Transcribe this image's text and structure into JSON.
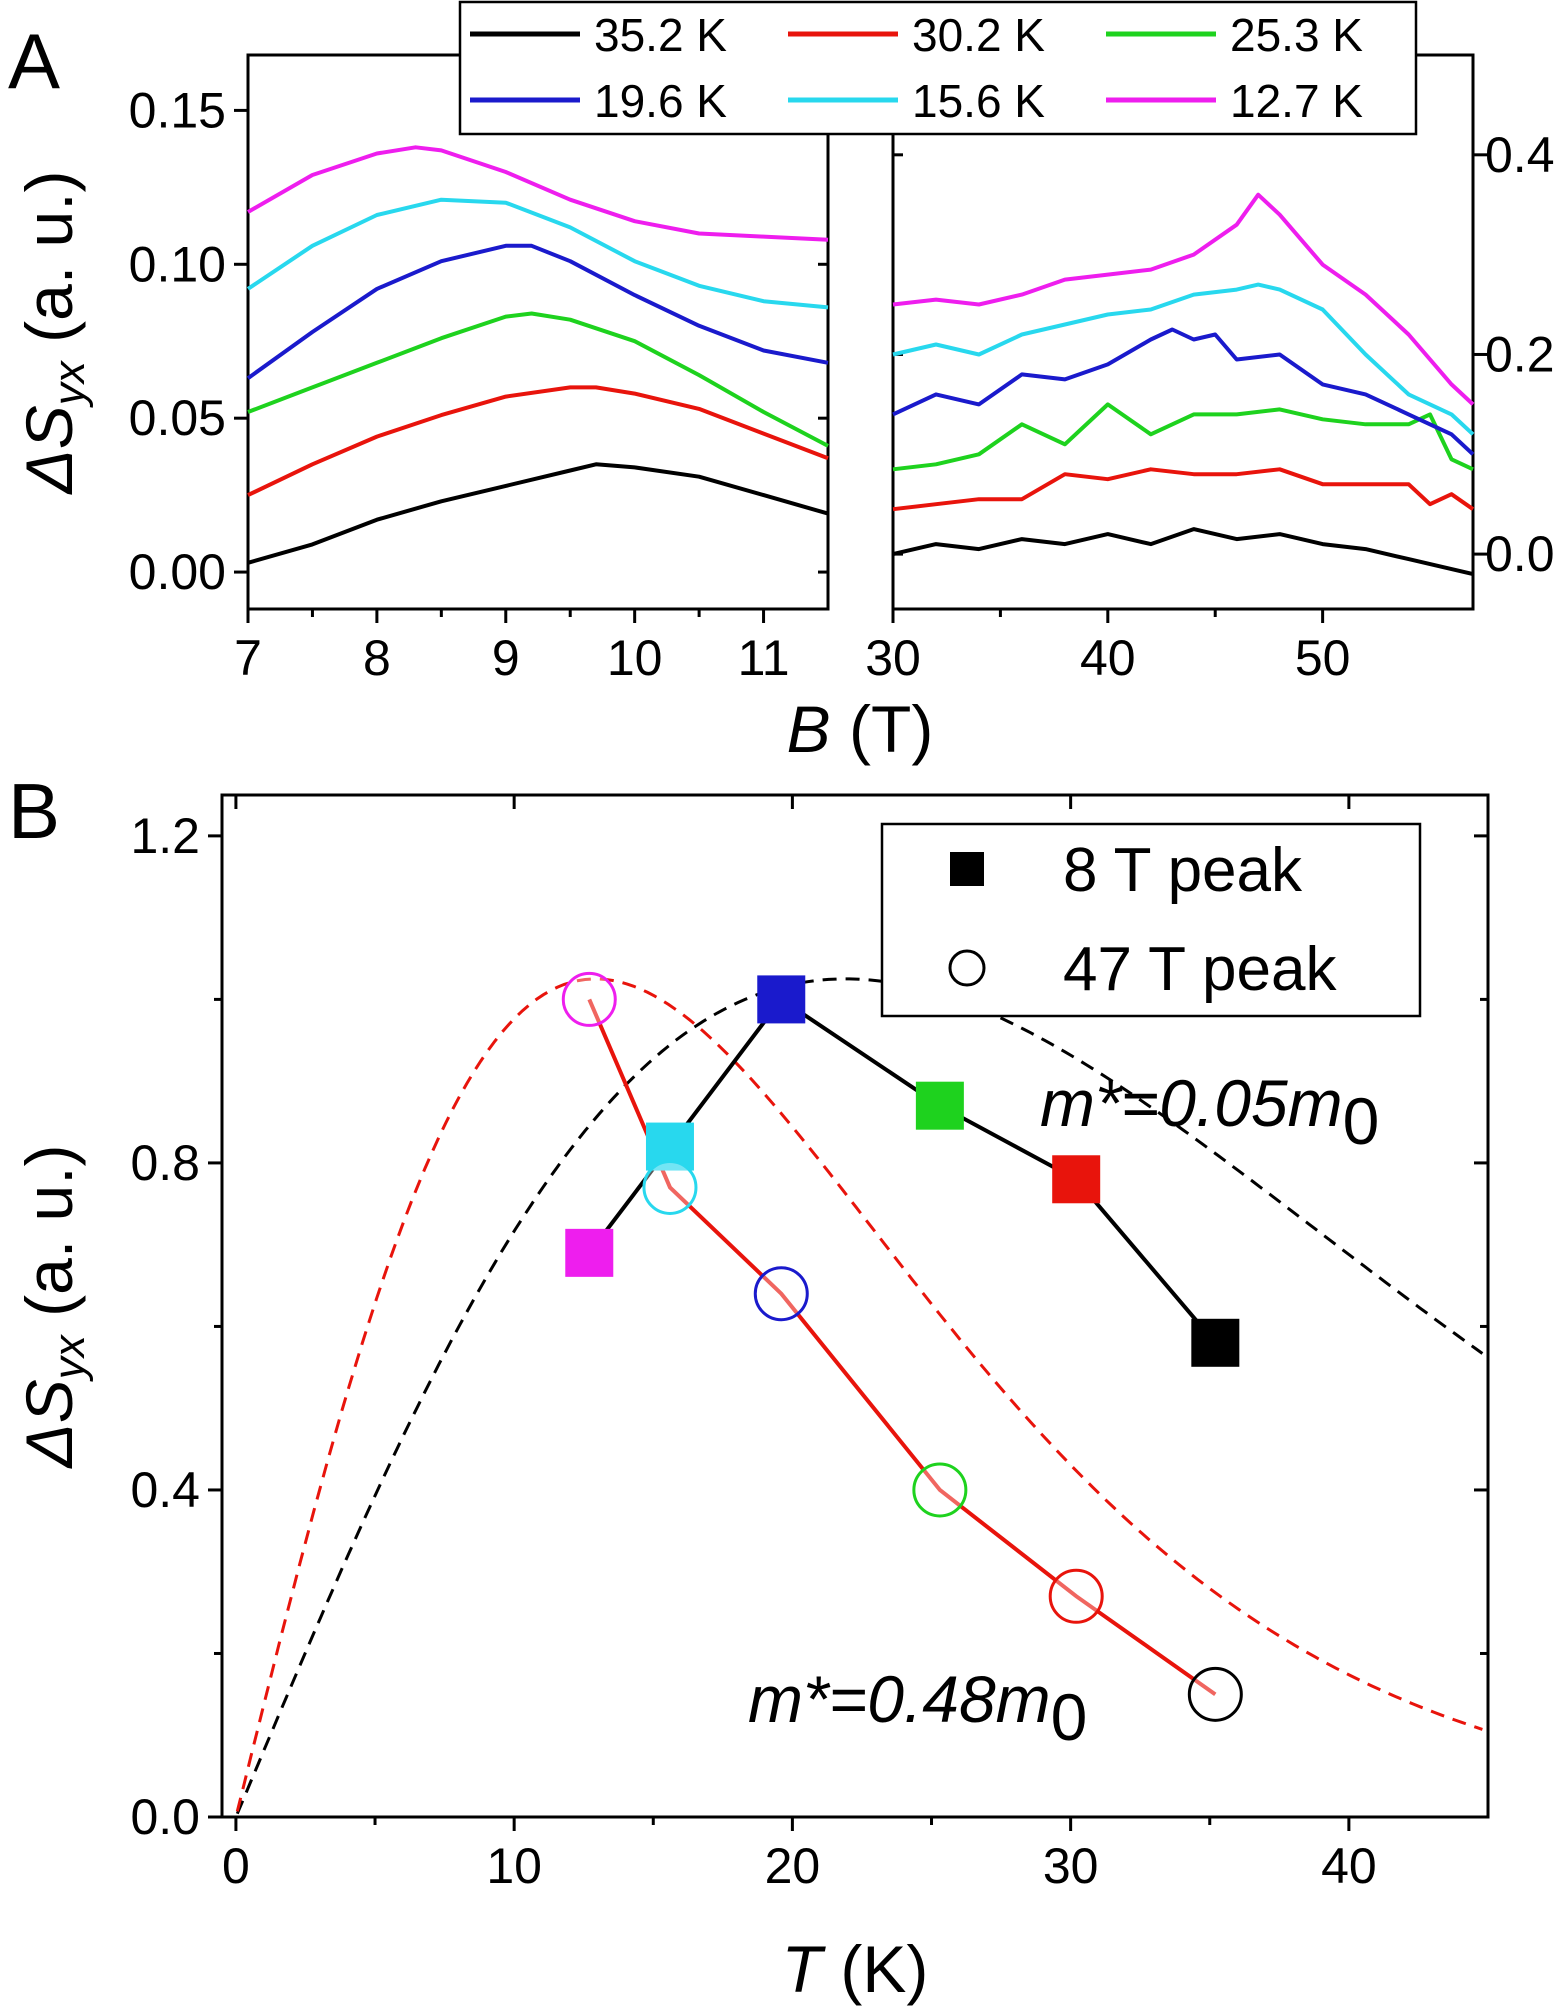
{
  "panels": {
    "A": {
      "letter": "A"
    },
    "B": {
      "letter": "B"
    }
  },
  "chart_data": [
    {
      "panel": "A",
      "type": "line",
      "ylabel": "ΔSyx (a. u.)",
      "ylabel_main": "ΔS",
      "ylabel_sub": "yx",
      "ylabel_unit": " (a. u.)",
      "xlabel": "B (T)",
      "xlabel_main": "B",
      "xlabel_unit": " (T)",
      "broken_x_axis": true,
      "left_axis": {
        "xlim": [
          7,
          11.5
        ],
        "ylim": [
          -0.012,
          0.168
        ],
        "xticks": [
          7,
          8,
          9,
          10,
          11
        ],
        "yticks": [
          0.0,
          0.05,
          0.1,
          0.15
        ],
        "yticklabels": [
          "0.00",
          "0.05",
          "0.10",
          "0.15"
        ]
      },
      "right_axis": {
        "xlim": [
          30,
          57
        ],
        "ylim": [
          -0.055,
          0.5
        ],
        "xticks": [
          30,
          40,
          50
        ],
        "yticks": [
          0.0,
          0.2,
          0.4
        ],
        "yticklabels": [
          "0.0",
          "0.2",
          "0.4"
        ]
      },
      "legend": {
        "placement": "top-center",
        "entries": [
          {
            "label": "35.2 K",
            "color": "#000000"
          },
          {
            "label": "30.2 K",
            "color": "#e8140c"
          },
          {
            "label": "25.3 K",
            "color": "#1ed21e"
          },
          {
            "label": "19.6 K",
            "color": "#1a1acc"
          },
          {
            "label": "15.6 K",
            "color": "#28d8ee"
          },
          {
            "label": "12.7 K",
            "color": "#ee1eee"
          }
        ]
      },
      "series": [
        {
          "name": "35.2 K",
          "color": "#000000",
          "low_field": {
            "x": [
              7,
              7.5,
              8,
              8.5,
              9,
              9.5,
              9.7,
              10,
              10.5,
              11,
              11.5
            ],
            "y": [
              0.003,
              0.009,
              0.017,
              0.023,
              0.028,
              0.033,
              0.035,
              0.034,
              0.031,
              0.025,
              0.019
            ]
          },
          "high_field": {
            "x": [
              30,
              32,
              34,
              36,
              38,
              40,
              42,
              44,
              46,
              48,
              50,
              52,
              54,
              56,
              57
            ],
            "y": [
              0.0,
              0.01,
              0.005,
              0.015,
              0.01,
              0.02,
              0.01,
              0.025,
              0.015,
              0.02,
              0.01,
              0.005,
              -0.005,
              -0.015,
              -0.02
            ]
          }
        },
        {
          "name": "30.2 K",
          "color": "#e8140c",
          "low_field": {
            "x": [
              7,
              7.5,
              8,
              8.5,
              9,
              9.5,
              9.7,
              10,
              10.5,
              11,
              11.5
            ],
            "y": [
              0.025,
              0.035,
              0.044,
              0.051,
              0.057,
              0.06,
              0.06,
              0.058,
              0.053,
              0.045,
              0.037
            ]
          },
          "high_field": {
            "x": [
              30,
              32,
              34,
              36,
              38,
              40,
              42,
              44,
              46,
              48,
              50,
              52,
              54,
              55,
              56,
              57
            ],
            "y": [
              0.045,
              0.05,
              0.055,
              0.055,
              0.08,
              0.075,
              0.085,
              0.08,
              0.08,
              0.085,
              0.07,
              0.07,
              0.07,
              0.05,
              0.06,
              0.045
            ]
          }
        },
        {
          "name": "25.3 K",
          "color": "#1ed21e",
          "low_field": {
            "x": [
              7,
              7.5,
              8,
              8.5,
              9,
              9.2,
              9.5,
              10,
              10.5,
              11,
              11.5
            ],
            "y": [
              0.052,
              0.06,
              0.068,
              0.076,
              0.083,
              0.084,
              0.082,
              0.075,
              0.064,
              0.052,
              0.041
            ]
          },
          "high_field": {
            "x": [
              30,
              32,
              34,
              36,
              38,
              40,
              42,
              44,
              46,
              48,
              50,
              52,
              54,
              55,
              56,
              57
            ],
            "y": [
              0.085,
              0.09,
              0.1,
              0.13,
              0.11,
              0.15,
              0.12,
              0.14,
              0.14,
              0.145,
              0.135,
              0.13,
              0.13,
              0.14,
              0.095,
              0.085
            ]
          }
        },
        {
          "name": "19.6 K",
          "color": "#1a1acc",
          "low_field": {
            "x": [
              7,
              7.5,
              8,
              8.5,
              9,
              9.2,
              9.5,
              10,
              10.5,
              11,
              11.5
            ],
            "y": [
              0.063,
              0.078,
              0.092,
              0.101,
              0.106,
              0.106,
              0.101,
              0.09,
              0.08,
              0.072,
              0.068
            ]
          },
          "high_field": {
            "x": [
              30,
              32,
              34,
              36,
              38,
              40,
              42,
              43,
              44,
              45,
              46,
              48,
              50,
              52,
              54,
              56,
              57
            ],
            "y": [
              0.14,
              0.16,
              0.15,
              0.18,
              0.175,
              0.19,
              0.215,
              0.225,
              0.215,
              0.22,
              0.195,
              0.2,
              0.17,
              0.16,
              0.14,
              0.12,
              0.1
            ]
          }
        },
        {
          "name": "15.6 K",
          "color": "#28d8ee",
          "low_field": {
            "x": [
              7,
              7.5,
              8,
              8.5,
              9,
              9.5,
              10,
              10.5,
              11,
              11.5
            ],
            "y": [
              0.092,
              0.106,
              0.116,
              0.121,
              0.12,
              0.112,
              0.101,
              0.093,
              0.088,
              0.086
            ]
          },
          "high_field": {
            "x": [
              30,
              32,
              34,
              36,
              38,
              40,
              42,
              44,
              46,
              47,
              48,
              50,
              52,
              54,
              56,
              57
            ],
            "y": [
              0.2,
              0.21,
              0.2,
              0.22,
              0.23,
              0.24,
              0.245,
              0.26,
              0.265,
              0.27,
              0.265,
              0.245,
              0.2,
              0.16,
              0.14,
              0.12
            ]
          }
        },
        {
          "name": "12.7 K",
          "color": "#ee1eee",
          "low_field": {
            "x": [
              7,
              7.5,
              8,
              8.3,
              8.5,
              9,
              9.5,
              10,
              10.5,
              11,
              11.5
            ],
            "y": [
              0.117,
              0.129,
              0.136,
              0.138,
              0.137,
              0.13,
              0.121,
              0.114,
              0.11,
              0.109,
              0.108
            ]
          },
          "high_field": {
            "x": [
              30,
              32,
              34,
              36,
              38,
              40,
              42,
              44,
              46,
              47,
              48,
              50,
              52,
              54,
              56,
              57
            ],
            "y": [
              0.25,
              0.255,
              0.25,
              0.26,
              0.275,
              0.28,
              0.285,
              0.3,
              0.33,
              0.36,
              0.34,
              0.29,
              0.26,
              0.22,
              0.17,
              0.15
            ]
          }
        }
      ]
    },
    {
      "panel": "B",
      "type": "scatter",
      "xlabel": "T (K)",
      "xlabel_main": "T",
      "xlabel_unit": " (K)",
      "ylabel": "ΔSyx (a. u.)",
      "ylabel_main": "ΔS",
      "ylabel_sub": "yx",
      "ylabel_unit": " (a. u.)",
      "xlim": [
        -0.5,
        45
      ],
      "ylim": [
        0,
        1.25
      ],
      "xticks": [
        0,
        10,
        20,
        30,
        40
      ],
      "yticks": [
        0.0,
        0.4,
        0.8,
        1.2
      ],
      "yticklabels": [
        "0.0",
        "0.4",
        "0.8",
        "1.2"
      ],
      "legend": {
        "placement": "top-right",
        "entries": [
          {
            "label": "8 T peak",
            "marker": "square-filled"
          },
          {
            "label": "47 T peak",
            "marker": "circle-open"
          }
        ]
      },
      "series": [
        {
          "name": "8 T peak",
          "marker": "square-filled",
          "line_color": "#000000",
          "points": [
            {
              "x": 12.7,
              "y": 0.69,
              "color": "#ee1eee"
            },
            {
              "x": 15.6,
              "y": 0.82,
              "color": "#28d8ee"
            },
            {
              "x": 19.6,
              "y": 1.0,
              "color": "#1a1acc"
            },
            {
              "x": 25.3,
              "y": 0.87,
              "color": "#1ed21e"
            },
            {
              "x": 30.2,
              "y": 0.78,
              "color": "#e8140c"
            },
            {
              "x": 35.2,
              "y": 0.58,
              "color": "#000000"
            }
          ]
        },
        {
          "name": "47 T peak",
          "marker": "circle-open",
          "line_color": "#e8140c",
          "points": [
            {
              "x": 12.7,
              "y": 1.0,
              "color": "#ee1eee"
            },
            {
              "x": 15.6,
              "y": 0.77,
              "color": "#28d8ee"
            },
            {
              "x": 19.6,
              "y": 0.64,
              "color": "#1a1acc"
            },
            {
              "x": 25.3,
              "y": 0.4,
              "color": "#1ed21e"
            },
            {
              "x": 30.2,
              "y": 0.27,
              "color": "#e8140c"
            },
            {
              "x": 35.2,
              "y": 0.15,
              "color": "#000000"
            }
          ]
        }
      ],
      "fits": [
        {
          "label": "m*=0.05m0",
          "label_main": "m*=0.05m",
          "label_sub": "0",
          "peak_T": 18.3,
          "color": "#000000",
          "style": "dashed"
        },
        {
          "label": "m*=0.48m0",
          "label_main": "m*=0.48m",
          "label_sub": "0",
          "peak_T": 10.8,
          "color": "#e8140c",
          "style": "dashed"
        }
      ]
    }
  ]
}
